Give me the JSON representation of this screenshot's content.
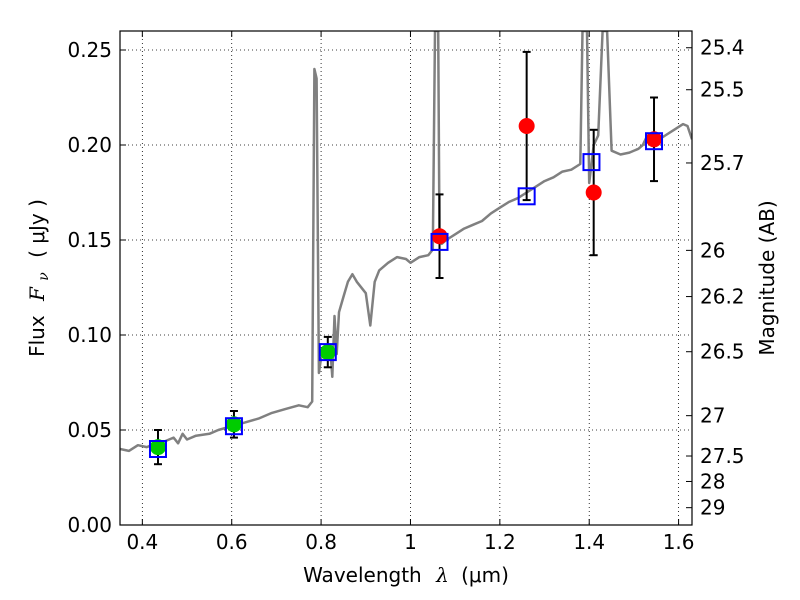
{
  "chart_data": {
    "type": "scatter",
    "xlabel": {
      "text": "Wavelength",
      "symbol": "λ",
      "unit": "(μm)"
    },
    "ylabel": {
      "text": "Flux",
      "symbol": "F",
      "sub": "ν",
      "unit": "( μJy )"
    },
    "y2label": "Magnitude (AB)",
    "xlim": [
      0.35,
      1.63
    ],
    "ylim": [
      0.0,
      0.26
    ],
    "grid": true,
    "x_ticks": [
      {
        "v": 0.4,
        "label": "0.4"
      },
      {
        "v": 0.6,
        "label": "0.6"
      },
      {
        "v": 0.8,
        "label": "0.8"
      },
      {
        "v": 1.0,
        "label": "1"
      },
      {
        "v": 1.2,
        "label": "1.2"
      },
      {
        "v": 1.4,
        "label": "1.4"
      },
      {
        "v": 1.6,
        "label": "1.6"
      }
    ],
    "y_ticks": [
      {
        "v": 0.0,
        "label": "0.00"
      },
      {
        "v": 0.05,
        "label": "0.05"
      },
      {
        "v": 0.1,
        "label": "0.10"
      },
      {
        "v": 0.15,
        "label": "0.15"
      },
      {
        "v": 0.2,
        "label": "0.20"
      },
      {
        "v": 0.25,
        "label": "0.25"
      }
    ],
    "mag_ticks": [
      {
        "label": "25.4"
      },
      {
        "label": "25.5"
      },
      {
        "label": "25.7"
      },
      {
        "label": "26"
      },
      {
        "label": "26.2"
      },
      {
        "label": "26.5"
      },
      {
        "label": "27"
      },
      {
        "label": "27.5"
      },
      {
        "label": "28"
      },
      {
        "label": "29"
      }
    ],
    "colors": {
      "spectrum": "#808080",
      "green": "#00cc00",
      "red": "#ff0000",
      "box": "#0000ff",
      "err": "#000000"
    },
    "spectrum": [
      [
        0.35,
        0.04
      ],
      [
        0.37,
        0.039
      ],
      [
        0.39,
        0.042
      ],
      [
        0.41,
        0.041
      ],
      [
        0.43,
        0.043
      ],
      [
        0.45,
        0.044
      ],
      [
        0.47,
        0.046
      ],
      [
        0.48,
        0.043
      ],
      [
        0.49,
        0.048
      ],
      [
        0.5,
        0.045
      ],
      [
        0.52,
        0.047
      ],
      [
        0.55,
        0.048
      ],
      [
        0.57,
        0.05
      ],
      [
        0.6,
        0.052
      ],
      [
        0.63,
        0.054
      ],
      [
        0.66,
        0.056
      ],
      [
        0.69,
        0.059
      ],
      [
        0.72,
        0.061
      ],
      [
        0.75,
        0.063
      ],
      [
        0.77,
        0.062
      ],
      [
        0.78,
        0.065
      ],
      [
        0.785,
        0.24
      ],
      [
        0.79,
        0.235
      ],
      [
        0.795,
        0.08
      ],
      [
        0.8,
        0.088
      ],
      [
        0.81,
        0.09
      ],
      [
        0.82,
        0.095
      ],
      [
        0.825,
        0.078
      ],
      [
        0.83,
        0.11
      ],
      [
        0.835,
        0.09
      ],
      [
        0.84,
        0.112
      ],
      [
        0.85,
        0.12
      ],
      [
        0.86,
        0.128
      ],
      [
        0.87,
        0.132
      ],
      [
        0.88,
        0.128
      ],
      [
        0.9,
        0.122
      ],
      [
        0.91,
        0.105
      ],
      [
        0.92,
        0.128
      ],
      [
        0.93,
        0.134
      ],
      [
        0.95,
        0.138
      ],
      [
        0.97,
        0.141
      ],
      [
        0.99,
        0.14
      ],
      [
        1.0,
        0.138
      ],
      [
        1.02,
        0.141
      ],
      [
        1.04,
        0.142
      ],
      [
        1.05,
        0.145
      ],
      [
        1.055,
        0.26
      ],
      [
        1.062,
        0.26
      ],
      [
        1.065,
        0.15
      ],
      [
        1.07,
        0.148
      ],
      [
        1.08,
        0.15
      ],
      [
        1.1,
        0.153
      ],
      [
        1.12,
        0.156
      ],
      [
        1.14,
        0.158
      ],
      [
        1.16,
        0.16
      ],
      [
        1.18,
        0.164
      ],
      [
        1.2,
        0.167
      ],
      [
        1.22,
        0.17
      ],
      [
        1.24,
        0.172
      ],
      [
        1.26,
        0.175
      ],
      [
        1.28,
        0.178
      ],
      [
        1.3,
        0.181
      ],
      [
        1.32,
        0.183
      ],
      [
        1.34,
        0.186
      ],
      [
        1.36,
        0.187
      ],
      [
        1.38,
        0.19
      ],
      [
        1.385,
        0.26
      ],
      [
        1.395,
        0.26
      ],
      [
        1.4,
        0.18
      ],
      [
        1.41,
        0.2
      ],
      [
        1.42,
        0.205
      ],
      [
        1.43,
        0.26
      ],
      [
        1.44,
        0.26
      ],
      [
        1.45,
        0.197
      ],
      [
        1.47,
        0.195
      ],
      [
        1.49,
        0.196
      ],
      [
        1.51,
        0.198
      ],
      [
        1.52,
        0.2
      ],
      [
        1.53,
        0.205
      ],
      [
        1.55,
        0.202
      ],
      [
        1.57,
        0.205
      ],
      [
        1.59,
        0.208
      ],
      [
        1.61,
        0.211
      ],
      [
        1.62,
        0.21
      ],
      [
        1.63,
        0.203
      ]
    ],
    "green_points": [
      {
        "x": 0.435,
        "y": 0.041,
        "err": 0.009
      },
      {
        "x": 0.605,
        "y": 0.053,
        "err": 0.007
      },
      {
        "x": 0.815,
        "y": 0.091,
        "err": 0.008
      }
    ],
    "red_points": [
      {
        "x": 1.065,
        "y": 0.152,
        "err": 0.022
      },
      {
        "x": 1.26,
        "y": 0.21,
        "err": 0.039
      },
      {
        "x": 1.41,
        "y": 0.175,
        "err": 0.033
      },
      {
        "x": 1.545,
        "y": 0.203,
        "err": 0.022
      }
    ],
    "model_boxes": [
      {
        "x": 0.435,
        "y": 0.04
      },
      {
        "x": 0.605,
        "y": 0.052
      },
      {
        "x": 0.815,
        "y": 0.091
      },
      {
        "x": 1.065,
        "y": 0.149
      },
      {
        "x": 1.26,
        "y": 0.173
      },
      {
        "x": 1.405,
        "y": 0.191
      },
      {
        "x": 1.545,
        "y": 0.202
      }
    ]
  }
}
